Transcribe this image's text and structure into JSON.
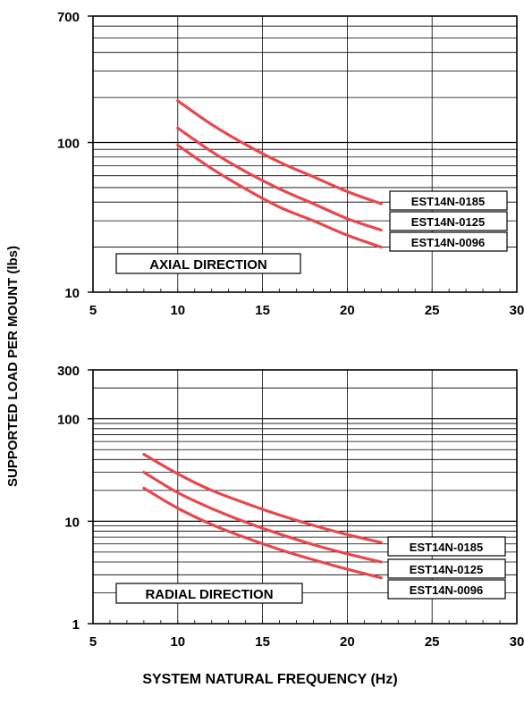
{
  "figure": {
    "ylabel": "SUPPORTED LOAD PER MOUNT (lbs)",
    "xlabel": "SYSTEM NATURAL FREQUENCY (Hz)",
    "line_color": "#e8474d"
  },
  "chart_data": [
    {
      "type": "line",
      "title": "AXIAL DIRECTION",
      "x_scale": "linear",
      "y_scale": "log",
      "xlim": [
        5,
        30
      ],
      "ylim": [
        10,
        700
      ],
      "x_ticks": [
        "5",
        "10",
        "15",
        "20",
        "25",
        "30"
      ],
      "y_ticks": [
        "10",
        "100",
        "700"
      ],
      "series": [
        {
          "name": "EST14N-0185",
          "x": [
            10,
            12,
            14,
            16,
            18,
            20,
            22
          ],
          "y": [
            190,
            132,
            97,
            74,
            59,
            47,
            39
          ]
        },
        {
          "name": "EST14N-0125",
          "x": [
            10,
            12,
            14,
            16,
            18,
            20,
            22
          ],
          "y": [
            125,
            87,
            64,
            49,
            39,
            31,
            26
          ]
        },
        {
          "name": "EST14N-0096",
          "x": [
            10,
            12,
            14,
            16,
            18,
            20,
            22
          ],
          "y": [
            96,
            67,
            49,
            37,
            30,
            24,
            20
          ]
        }
      ]
    },
    {
      "type": "line",
      "title": "RADIAL DIRECTION",
      "x_scale": "linear",
      "y_scale": "log",
      "xlim": [
        5,
        30
      ],
      "ylim": [
        1,
        300
      ],
      "x_ticks": [
        "5",
        "10",
        "15",
        "20",
        "25",
        "30"
      ],
      "y_ticks": [
        "1",
        "10",
        "100",
        "300"
      ],
      "series": [
        {
          "name": "EST14N-0185",
          "x": [
            8,
            10,
            12,
            14,
            16,
            18,
            20,
            22
          ],
          "y": [
            45,
            29,
            20,
            15,
            11.5,
            9.1,
            7.4,
            6.2
          ]
        },
        {
          "name": "EST14N-0125",
          "x": [
            8,
            10,
            12,
            14,
            16,
            18,
            20,
            22
          ],
          "y": [
            30,
            19,
            13.3,
            9.8,
            7.5,
            5.9,
            4.8,
            4.0
          ]
        },
        {
          "name": "EST14N-0096",
          "x": [
            8,
            10,
            12,
            14,
            16,
            18,
            20,
            22
          ],
          "y": [
            21,
            13.4,
            9.3,
            6.9,
            5.3,
            4.2,
            3.4,
            2.8
          ]
        }
      ]
    }
  ]
}
